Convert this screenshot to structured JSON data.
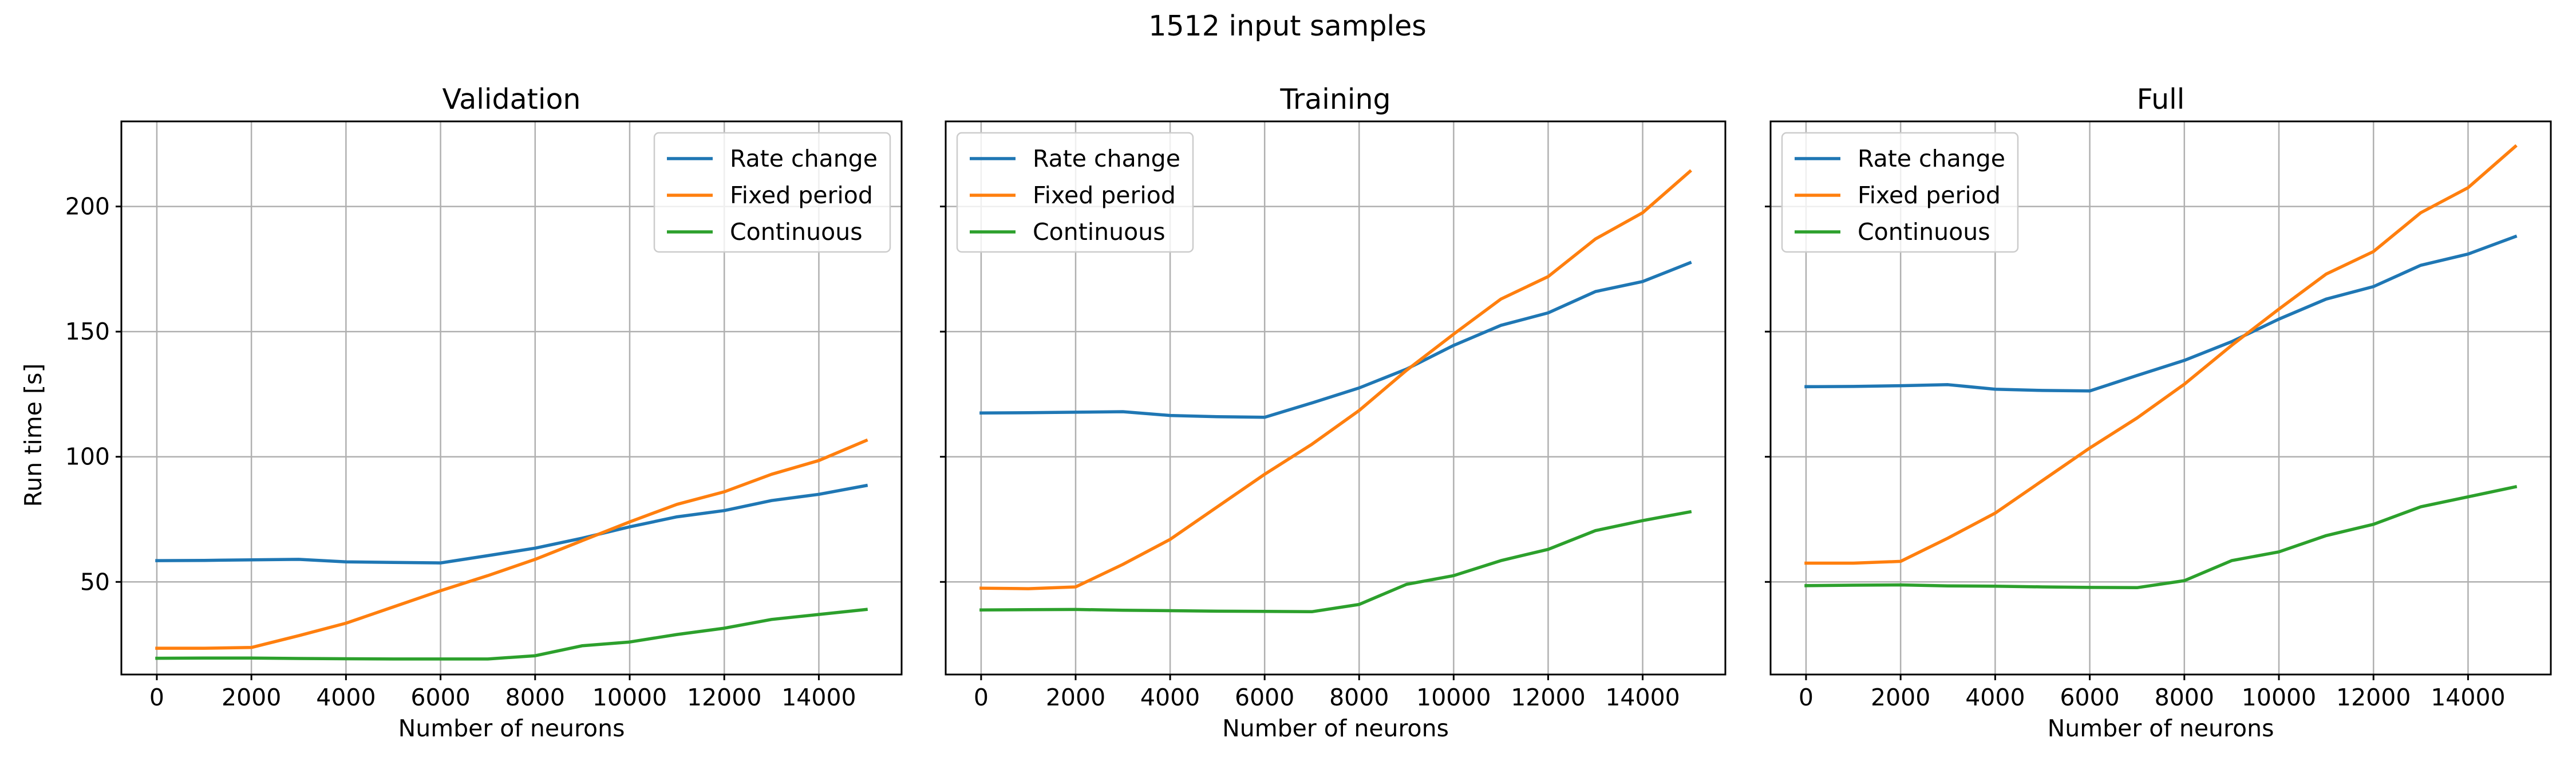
{
  "suptitle": "1512 input samples",
  "ylabel": "Run time [s]",
  "colors": {
    "Rate change": "#1f77b4",
    "Fixed period": "#ff7f0e",
    "Continuous": "#2ca02c"
  },
  "chart_data": [
    {
      "type": "line",
      "title": "Validation",
      "xlabel": "Number of neurons",
      "ylabel": "Run time [s]",
      "x": [
        0,
        1000,
        2000,
        3000,
        4000,
        5000,
        6000,
        7000,
        8000,
        9000,
        10000,
        11000,
        12000,
        13000,
        14000,
        15000
      ],
      "xticks": [
        0,
        2000,
        4000,
        6000,
        8000,
        10000,
        12000,
        14000
      ],
      "yticks": [
        50,
        100,
        150,
        200
      ],
      "xlim": [
        -750,
        15750
      ],
      "ylim": [
        13,
        234
      ],
      "grid": true,
      "legend_position": "upper right",
      "show_ytick_labels": true,
      "series": [
        {
          "name": "Rate change",
          "values": [
            58.5,
            58.6,
            58.8,
            59.0,
            58.0,
            57.8,
            57.6,
            60.5,
            63.5,
            67.5,
            72.0,
            76.0,
            78.5,
            82.5,
            85.0,
            88.5
          ]
        },
        {
          "name": "Fixed period",
          "values": [
            23.5,
            23.5,
            23.8,
            28.5,
            33.5,
            40.0,
            46.5,
            52.5,
            59.0,
            66.5,
            74.0,
            81.0,
            86.0,
            93.0,
            98.5,
            106.5
          ]
        },
        {
          "name": "Continuous",
          "values": [
            19.5,
            19.6,
            19.6,
            19.4,
            19.3,
            19.2,
            19.2,
            19.2,
            20.5,
            24.5,
            26.0,
            29.0,
            31.5,
            35.0,
            37.0,
            39.0
          ]
        }
      ]
    },
    {
      "type": "line",
      "title": "Training",
      "xlabel": "Number of neurons",
      "ylabel": "",
      "x": [
        0,
        1000,
        2000,
        3000,
        4000,
        5000,
        6000,
        7000,
        8000,
        9000,
        10000,
        11000,
        12000,
        13000,
        14000,
        15000
      ],
      "xticks": [
        0,
        2000,
        4000,
        6000,
        8000,
        10000,
        12000,
        14000
      ],
      "yticks": [
        50,
        100,
        150,
        200
      ],
      "xlim": [
        -750,
        15750
      ],
      "ylim": [
        13,
        234
      ],
      "grid": true,
      "legend_position": "upper left",
      "show_ytick_labels": false,
      "series": [
        {
          "name": "Rate change",
          "values": [
            117.5,
            117.6,
            117.8,
            118.0,
            116.5,
            116.0,
            115.8,
            121.5,
            127.5,
            135.0,
            144.5,
            152.5,
            157.5,
            166.0,
            170.0,
            177.5
          ]
        },
        {
          "name": "Fixed period",
          "values": [
            47.5,
            47.3,
            48.0,
            57.0,
            67.0,
            80.0,
            93.0,
            105.0,
            118.5,
            134.5,
            149.0,
            163.0,
            172.0,
            187.0,
            197.5,
            214.0
          ]
        },
        {
          "name": "Continuous",
          "values": [
            38.8,
            38.9,
            39.0,
            38.7,
            38.5,
            38.3,
            38.2,
            38.1,
            41.0,
            49.0,
            52.5,
            58.5,
            63.0,
            70.5,
            74.5,
            78.0
          ]
        }
      ]
    },
    {
      "type": "line",
      "title": "Full",
      "xlabel": "Number of neurons",
      "ylabel": "",
      "x": [
        0,
        1000,
        2000,
        3000,
        4000,
        5000,
        6000,
        7000,
        8000,
        9000,
        10000,
        11000,
        12000,
        13000,
        14000,
        15000
      ],
      "xticks": [
        0,
        2000,
        4000,
        6000,
        8000,
        10000,
        12000,
        14000
      ],
      "yticks": [
        50,
        100,
        150,
        200
      ],
      "xlim": [
        -750,
        15750
      ],
      "ylim": [
        13,
        234
      ],
      "grid": true,
      "legend_position": "upper left",
      "show_ytick_labels": false,
      "series": [
        {
          "name": "Rate change",
          "values": [
            128.0,
            128.1,
            128.4,
            128.8,
            127.0,
            126.5,
            126.3,
            132.5,
            138.5,
            146.0,
            155.0,
            163.0,
            168.0,
            176.5,
            181.0,
            188.0
          ]
        },
        {
          "name": "Fixed period",
          "values": [
            57.5,
            57.5,
            58.2,
            67.5,
            77.5,
            90.5,
            103.5,
            115.5,
            129.0,
            144.5,
            159.0,
            173.0,
            182.0,
            197.5,
            207.5,
            224.0
          ]
        },
        {
          "name": "Continuous",
          "values": [
            48.5,
            48.7,
            48.8,
            48.4,
            48.3,
            48.0,
            47.8,
            47.7,
            50.5,
            58.5,
            62.0,
            68.5,
            73.0,
            80.0,
            84.0,
            88.0
          ]
        }
      ]
    }
  ]
}
